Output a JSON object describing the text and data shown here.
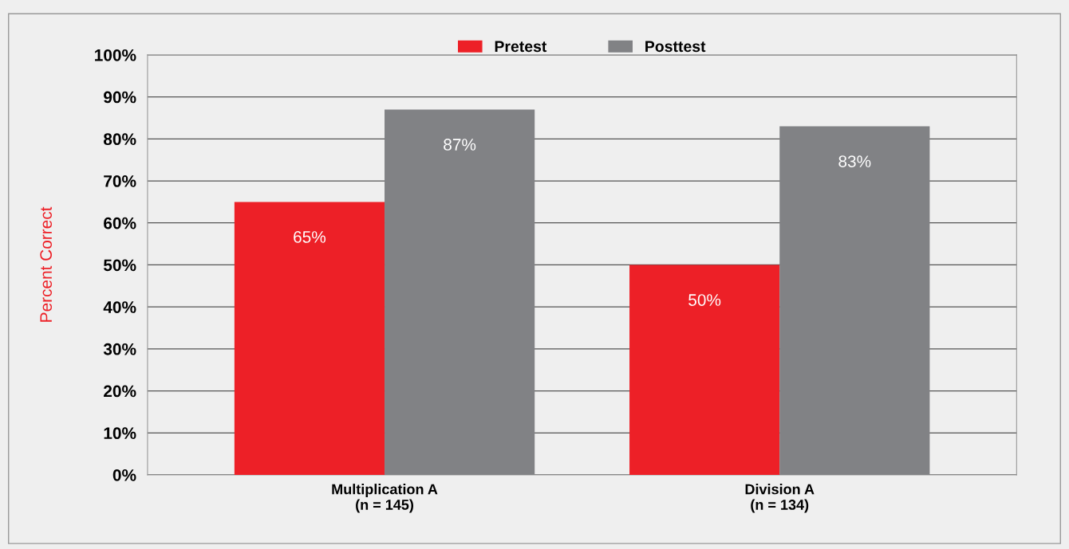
{
  "chart_data": {
    "type": "bar",
    "ylabel": "Percent Correct",
    "categories": [
      "Multiplication A\n(n = 145)",
      "Division A\n(n = 134)"
    ],
    "series": [
      {
        "name": "Pretest",
        "color": "#ed2027",
        "values": [
          65,
          50
        ]
      },
      {
        "name": "Posttest",
        "color": "#818285",
        "values": [
          87,
          83
        ]
      }
    ],
    "ylim": [
      0,
      100
    ],
    "yticks": [
      {
        "value": 0,
        "label": "0%"
      },
      {
        "value": 10,
        "label": "10%"
      },
      {
        "value": 20,
        "label": "20%"
      },
      {
        "value": 30,
        "label": "30%"
      },
      {
        "value": 40,
        "label": "40%"
      },
      {
        "value": 50,
        "label": "50%"
      },
      {
        "value": 60,
        "label": "60%"
      },
      {
        "value": 70,
        "label": "70%"
      },
      {
        "value": 80,
        "label": "80%"
      },
      {
        "value": 90,
        "label": "90%"
      },
      {
        "value": 100,
        "label": "100%"
      }
    ],
    "value_labels": [
      [
        "65%",
        "50%"
      ],
      [
        "87%",
        "83%"
      ]
    ],
    "grid": "y",
    "legend": "top"
  }
}
